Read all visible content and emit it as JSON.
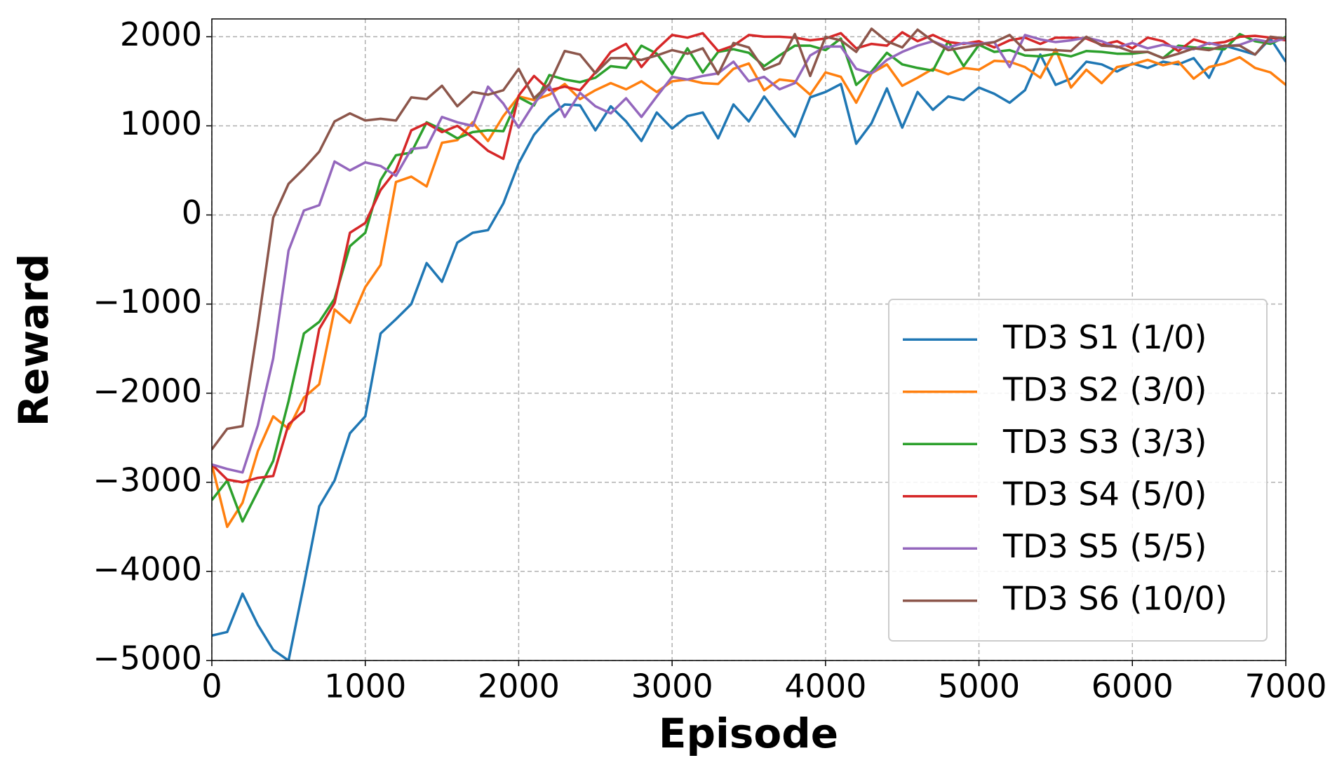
{
  "chart_data": {
    "type": "line",
    "xlabel": "Episode",
    "ylabel": "Reward",
    "x": [
      0,
      100,
      200,
      300,
      400,
      500,
      600,
      700,
      800,
      900,
      1000,
      1100,
      1200,
      1300,
      1400,
      1500,
      1600,
      1700,
      1800,
      1900,
      2000,
      2100,
      2200,
      2300,
      2400,
      2500,
      2600,
      2700,
      2800,
      2900,
      3000,
      3100,
      3200,
      3300,
      3400,
      3500,
      3600,
      3700,
      3800,
      3900,
      4000,
      4100,
      4200,
      4300,
      4400,
      4500,
      4600,
      4700,
      4800,
      4900,
      5000,
      5100,
      5200,
      5300,
      5400,
      5500,
      5600,
      5700,
      5800,
      5900,
      6000,
      6100,
      6200,
      6300,
      6400,
      6500,
      6600,
      6700,
      6800,
      6900,
      7000
    ],
    "series": [
      {
        "name": "TD3 S1 (1/0)",
        "color": "#1f77b4",
        "values": [
          -4720,
          -4680,
          -4250,
          -4600,
          -4880,
          -5000,
          -4150,
          -3270,
          -2980,
          -2450,
          -2260,
          -1330,
          -1170,
          -1000,
          -540,
          -750,
          -310,
          -200,
          -170,
          130,
          580,
          900,
          1100,
          1240,
          1230,
          950,
          1220,
          1050,
          830,
          1150,
          970,
          1110,
          1150,
          860,
          1240,
          1050,
          1330,
          1100,
          880,
          1320,
          1380,
          1470,
          800,
          1030,
          1420,
          980,
          1380,
          1180,
          1330,
          1290,
          1430,
          1360,
          1260,
          1400,
          1800,
          1460,
          1530,
          1720,
          1690,
          1610,
          1700,
          1650,
          1720,
          1690,
          1760,
          1540,
          1900,
          1850,
          1800,
          1980,
          1720
        ]
      },
      {
        "name": "TD3 S2 (3/0)",
        "color": "#ff7f0e",
        "values": [
          -2800,
          -3500,
          -3230,
          -2650,
          -2260,
          -2400,
          -2050,
          -1900,
          -1060,
          -1210,
          -810,
          -560,
          370,
          430,
          320,
          810,
          840,
          1040,
          830,
          1110,
          1330,
          1290,
          1350,
          1470,
          1300,
          1400,
          1480,
          1410,
          1500,
          1380,
          1500,
          1520,
          1480,
          1470,
          1640,
          1700,
          1400,
          1520,
          1500,
          1350,
          1600,
          1550,
          1260,
          1590,
          1690,
          1450,
          1540,
          1640,
          1580,
          1650,
          1630,
          1730,
          1720,
          1660,
          1540,
          1860,
          1430,
          1630,
          1480,
          1660,
          1690,
          1740,
          1680,
          1720,
          1530,
          1660,
          1700,
          1770,
          1650,
          1600,
          1460
        ]
      },
      {
        "name": "TD3 S3 (3/3)",
        "color": "#2ca02c",
        "values": [
          -3200,
          -2980,
          -3440,
          -3100,
          -2760,
          -2090,
          -1330,
          -1200,
          -940,
          -350,
          -200,
          390,
          670,
          700,
          1040,
          960,
          860,
          930,
          950,
          940,
          1320,
          1230,
          1570,
          1520,
          1490,
          1540,
          1670,
          1650,
          1900,
          1810,
          1580,
          1870,
          1600,
          1830,
          1860,
          1820,
          1670,
          1790,
          1900,
          1900,
          1850,
          1980,
          1460,
          1610,
          1820,
          1690,
          1650,
          1620,
          1950,
          1670,
          1910,
          1830,
          1850,
          1790,
          1780,
          1810,
          1780,
          1840,
          1830,
          1810,
          1810,
          1830,
          1760,
          1900,
          1880,
          1870,
          1860,
          2030,
          1950,
          1920,
          2000
        ]
      },
      {
        "name": "TD3 S4 (5/0)",
        "color": "#d62728",
        "values": [
          -2800,
          -2970,
          -3000,
          -2950,
          -2930,
          -2350,
          -2200,
          -1280,
          -990,
          -200,
          -90,
          280,
          500,
          950,
          1030,
          930,
          1000,
          870,
          720,
          630,
          1340,
          1560,
          1400,
          1440,
          1400,
          1600,
          1830,
          1920,
          1660,
          1860,
          2020,
          1990,
          2040,
          1840,
          1900,
          2020,
          2000,
          2000,
          1990,
          1960,
          1980,
          2040,
          1870,
          1920,
          1900,
          2050,
          1950,
          2020,
          1940,
          1920,
          1950,
          1880,
          1960,
          1990,
          1920,
          1990,
          1990,
          1980,
          1910,
          1950,
          1870,
          1990,
          1950,
          1840,
          1970,
          1920,
          1940,
          2000,
          2010,
          1990,
          1960
        ]
      },
      {
        "name": "TD3 S5 (5/5)",
        "color": "#9467bd",
        "values": [
          -2800,
          -2850,
          -2890,
          -2360,
          -1610,
          -400,
          50,
          110,
          600,
          500,
          590,
          550,
          440,
          740,
          760,
          1100,
          1040,
          1000,
          1440,
          1250,
          980,
          1250,
          1450,
          1100,
          1370,
          1220,
          1140,
          1310,
          1100,
          1330,
          1550,
          1520,
          1560,
          1590,
          1720,
          1500,
          1550,
          1410,
          1480,
          1790,
          1890,
          1890,
          1640,
          1590,
          1740,
          1830,
          1900,
          1950,
          1880,
          1930,
          1920,
          1940,
          1660,
          2020,
          1970,
          1940,
          1960,
          1990,
          1950,
          1880,
          1930,
          1870,
          1910,
          1880,
          1860,
          1930,
          1890,
          1910,
          1970,
          1940,
          1980
        ]
      },
      {
        "name": "TD3 S6 (10/0)",
        "color": "#8c564b",
        "values": [
          -2630,
          -2400,
          -2370,
          -1250,
          -30,
          350,
          520,
          710,
          1050,
          1140,
          1060,
          1080,
          1060,
          1320,
          1300,
          1450,
          1220,
          1380,
          1350,
          1400,
          1640,
          1310,
          1470,
          1840,
          1800,
          1590,
          1760,
          1760,
          1740,
          1790,
          1850,
          1810,
          1870,
          1580,
          1930,
          1880,
          1630,
          1700,
          2030,
          1560,
          2000,
          1960,
          1830,
          2090,
          1950,
          1880,
          2080,
          1950,
          1850,
          1880,
          1910,
          1940,
          2020,
          1850,
          1860,
          1850,
          1840,
          2000,
          1900,
          1890,
          1830,
          1830,
          1760,
          1810,
          1870,
          1850,
          1900,
          1900,
          1800,
          2000,
          1980
        ]
      }
    ],
    "xlim": [
      0,
      7000
    ],
    "xticks": [
      0,
      1000,
      2000,
      3000,
      4000,
      5000,
      6000,
      7000
    ],
    "ylim": [
      -5000,
      2200
    ],
    "yticks": [
      {
        "value": -5000,
        "label": "−5000"
      },
      {
        "value": -4000,
        "label": "−4000"
      },
      {
        "value": -3000,
        "label": "−3000"
      },
      {
        "value": -2000,
        "label": "−2000"
      },
      {
        "value": -1000,
        "label": "−1000"
      },
      0,
      1000,
      2000
    ],
    "grid": true,
    "legend": "lower right"
  }
}
